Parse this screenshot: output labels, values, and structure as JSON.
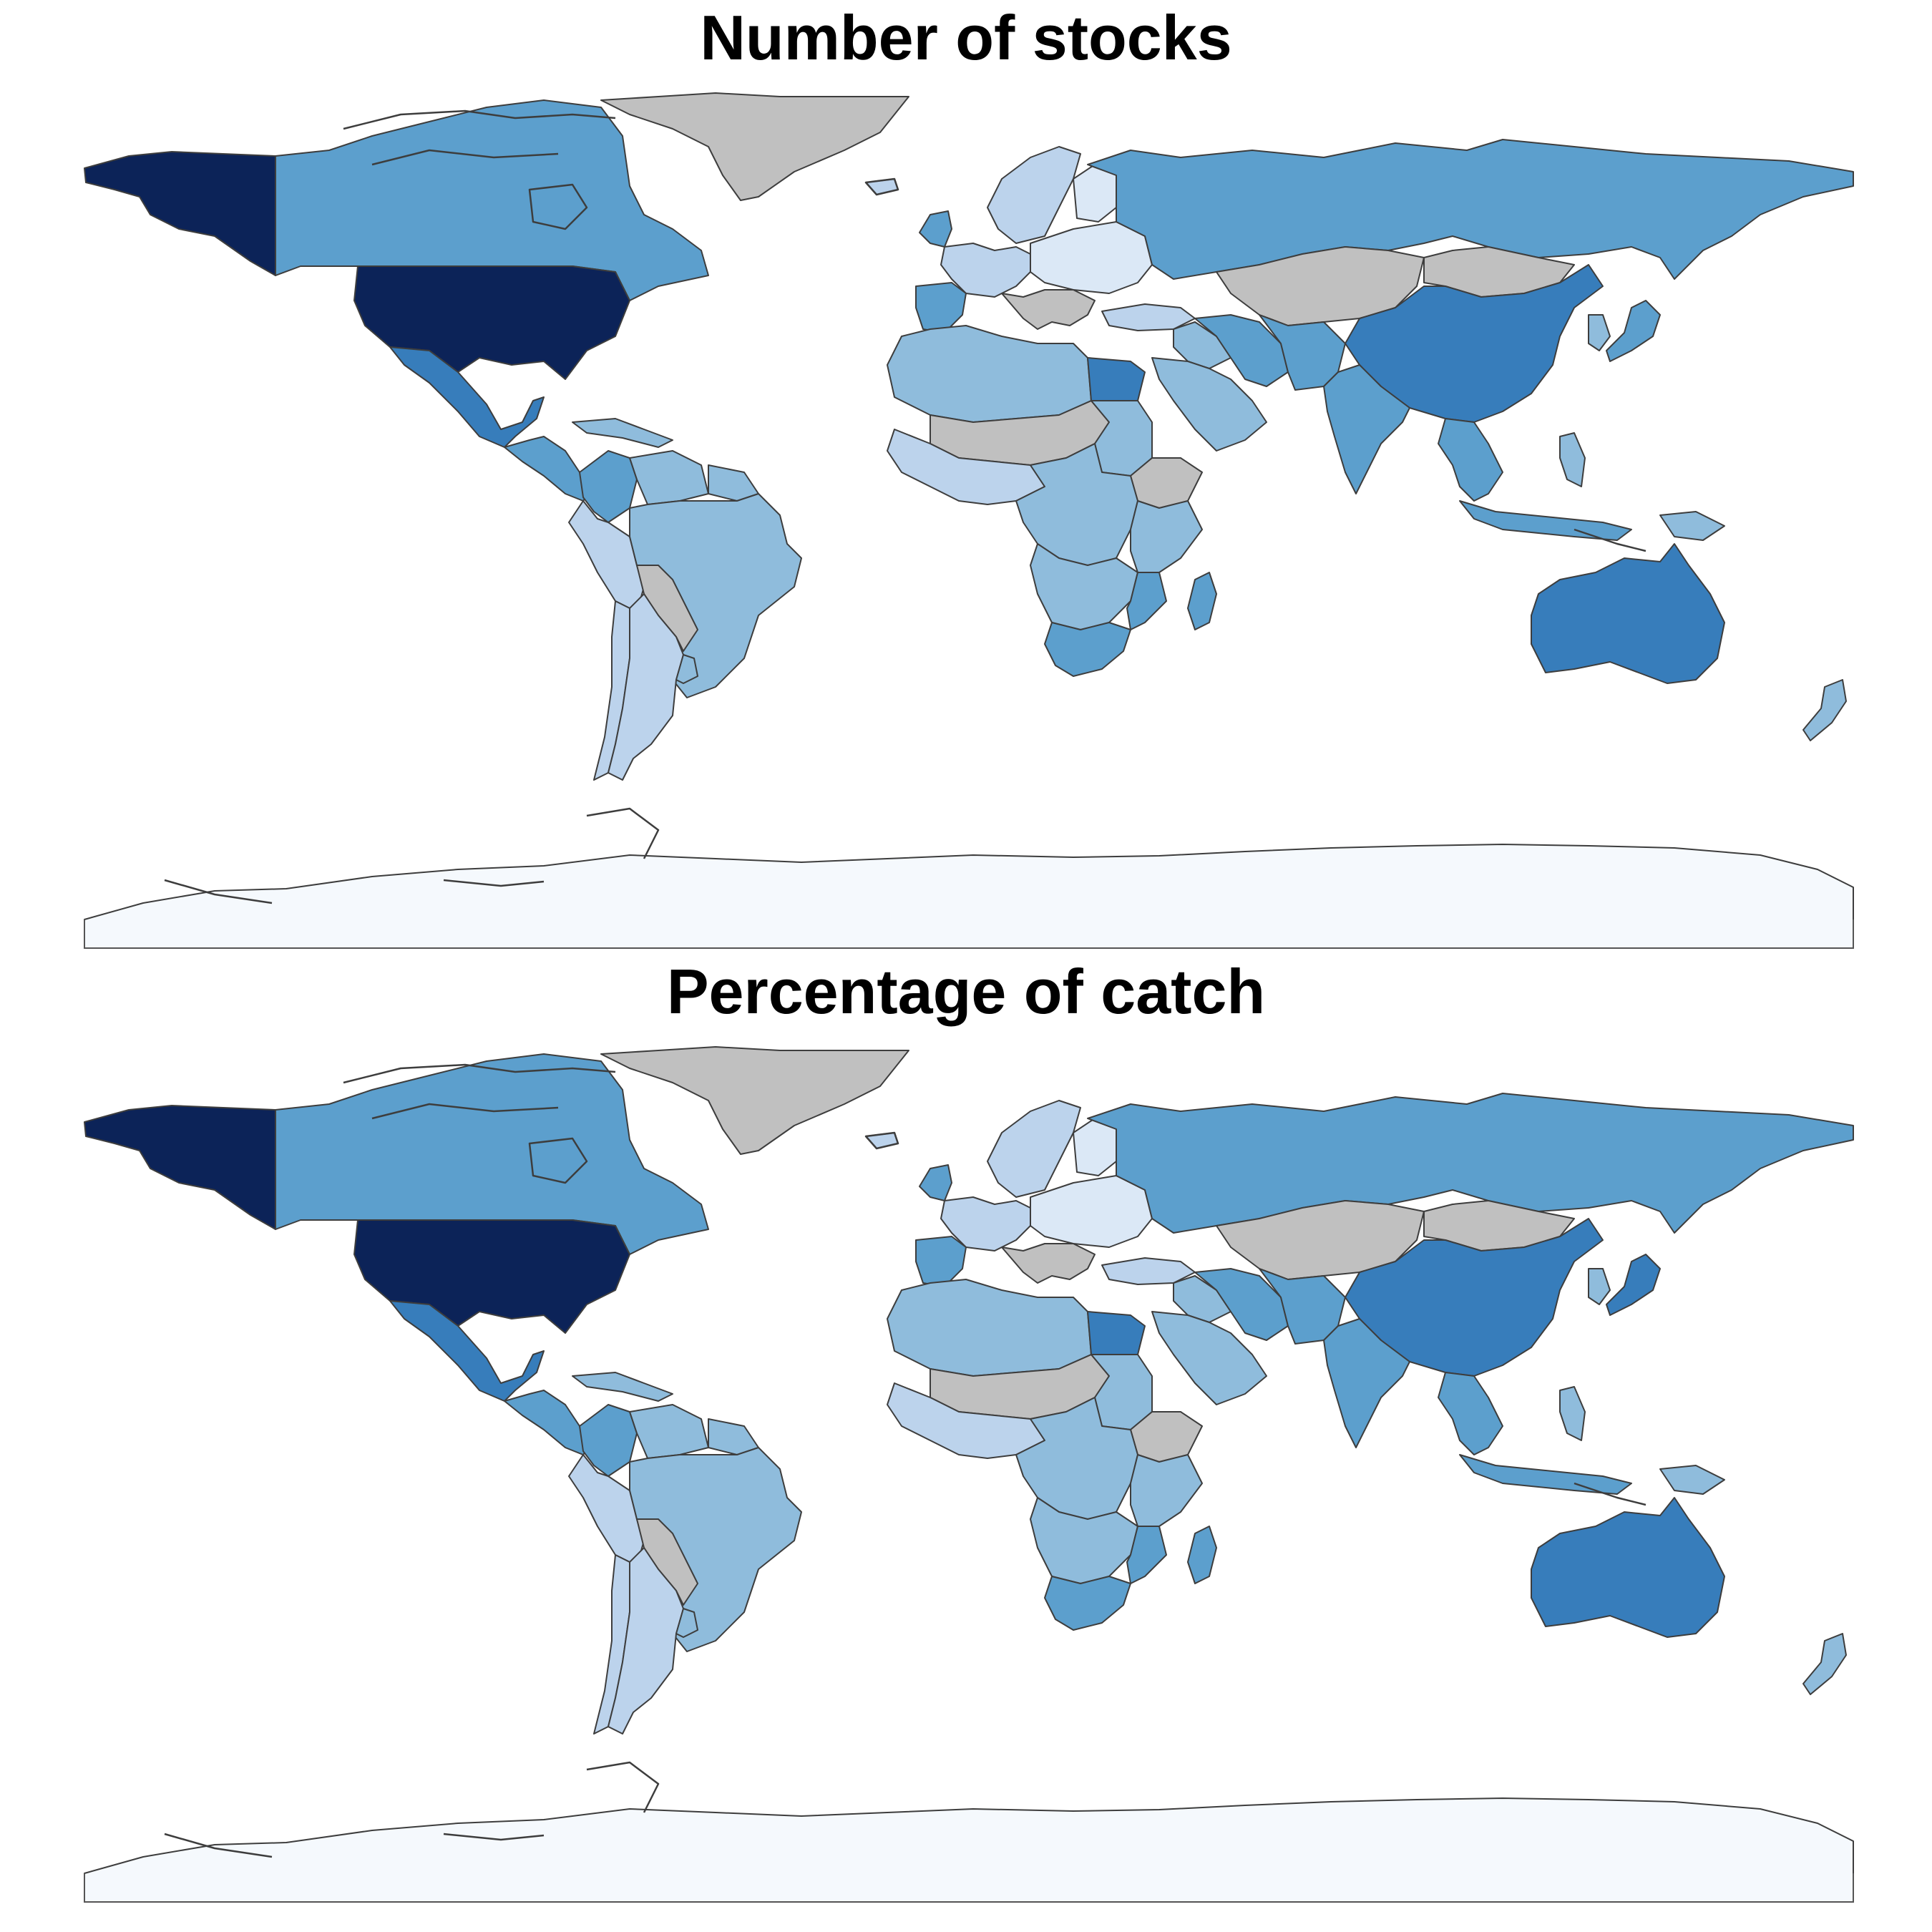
{
  "titles": {
    "top": "Number of stocks",
    "bottom": "Percentage of catch"
  },
  "colors": {
    "no_data": "#c0c0c0",
    "antarctica": "#f5f9fd",
    "level_1": "#dbe8f6",
    "level_2": "#bcd3ec",
    "level_3": "#8fbcdc",
    "level_4": "#5c9fcd",
    "level_5": "#377dbb",
    "level_6": "#0c2358",
    "border": "#3d3d3d"
  },
  "maps": [
    {
      "title_key": "top",
      "regions": {
        "usa": "level_6",
        "alaska": "level_6",
        "canada": "level_4",
        "greenland": "no_data",
        "mexico": "level_5",
        "central_america": "level_4",
        "caribbean": "level_3",
        "colombia": "level_4",
        "venezuela": "level_3",
        "guianas": "level_3",
        "peru_ecuador": "level_2",
        "brazil": "level_3",
        "bolivia_paraguay": "no_data",
        "chile": "level_2",
        "argentina": "level_2",
        "uruguay": "level_3",
        "iceland": "level_2",
        "uk_ireland": "level_4",
        "scandinavia": "level_2",
        "finland": "level_1",
        "western_europe": "level_2",
        "eastern_europe": "level_1",
        "iberia": "level_4",
        "italy_balkans": "no_data",
        "russia": "level_4",
        "kazakhstan_central_asia": "no_data",
        "mongolia": "no_data",
        "china": "level_5",
        "japan": "level_4",
        "korea": "level_3",
        "turkey": "level_2",
        "middle_east": "level_3",
        "arabia": "level_3",
        "iran": "level_4",
        "afghanistan_pakistan": "level_4",
        "india": "level_4",
        "southeast_asia": "level_4",
        "indonesia": "level_4",
        "philippines": "level_3",
        "png": "level_3",
        "australia": "level_5",
        "new_zealand": "level_3",
        "north_africa": "level_3",
        "egypt": "level_5",
        "sahel": "no_data",
        "west_africa": "level_2",
        "central_africa": "level_3",
        "sudan": "level_3",
        "ethiopia": "no_data",
        "east_africa": "level_3",
        "southern_africa": "level_3",
        "south_africa": "level_4",
        "mozambique": "level_4",
        "madagascar": "level_4",
        "antarctica": "antarctica"
      }
    },
    {
      "title_key": "bottom",
      "regions": {
        "usa": "level_6",
        "alaska": "level_6",
        "canada": "level_4",
        "greenland": "no_data",
        "mexico": "level_5",
        "central_america": "level_4",
        "caribbean": "level_3",
        "colombia": "level_4",
        "venezuela": "level_3",
        "guianas": "level_3",
        "peru_ecuador": "level_2",
        "brazil": "level_3",
        "bolivia_paraguay": "no_data",
        "chile": "level_2",
        "argentina": "level_2",
        "uruguay": "level_3",
        "iceland": "level_2",
        "uk_ireland": "level_4",
        "scandinavia": "level_2",
        "finland": "level_1",
        "western_europe": "level_2",
        "eastern_europe": "level_1",
        "iberia": "level_4",
        "italy_balkans": "no_data",
        "russia": "level_4",
        "kazakhstan_central_asia": "no_data",
        "mongolia": "no_data",
        "china": "level_5",
        "japan": "level_5",
        "korea": "level_3",
        "turkey": "level_2",
        "middle_east": "level_3",
        "arabia": "level_3",
        "iran": "level_4",
        "afghanistan_pakistan": "level_4",
        "india": "level_4",
        "southeast_asia": "level_4",
        "indonesia": "level_4",
        "philippines": "level_3",
        "png": "level_3",
        "australia": "level_5",
        "new_zealand": "level_3",
        "north_africa": "level_3",
        "egypt": "level_5",
        "sahel": "no_data",
        "west_africa": "level_2",
        "central_africa": "level_3",
        "sudan": "level_3",
        "ethiopia": "no_data",
        "east_africa": "level_3",
        "southern_africa": "level_3",
        "south_africa": "level_4",
        "mozambique": "level_4",
        "madagascar": "level_4",
        "antarctica": "antarctica"
      }
    }
  ]
}
